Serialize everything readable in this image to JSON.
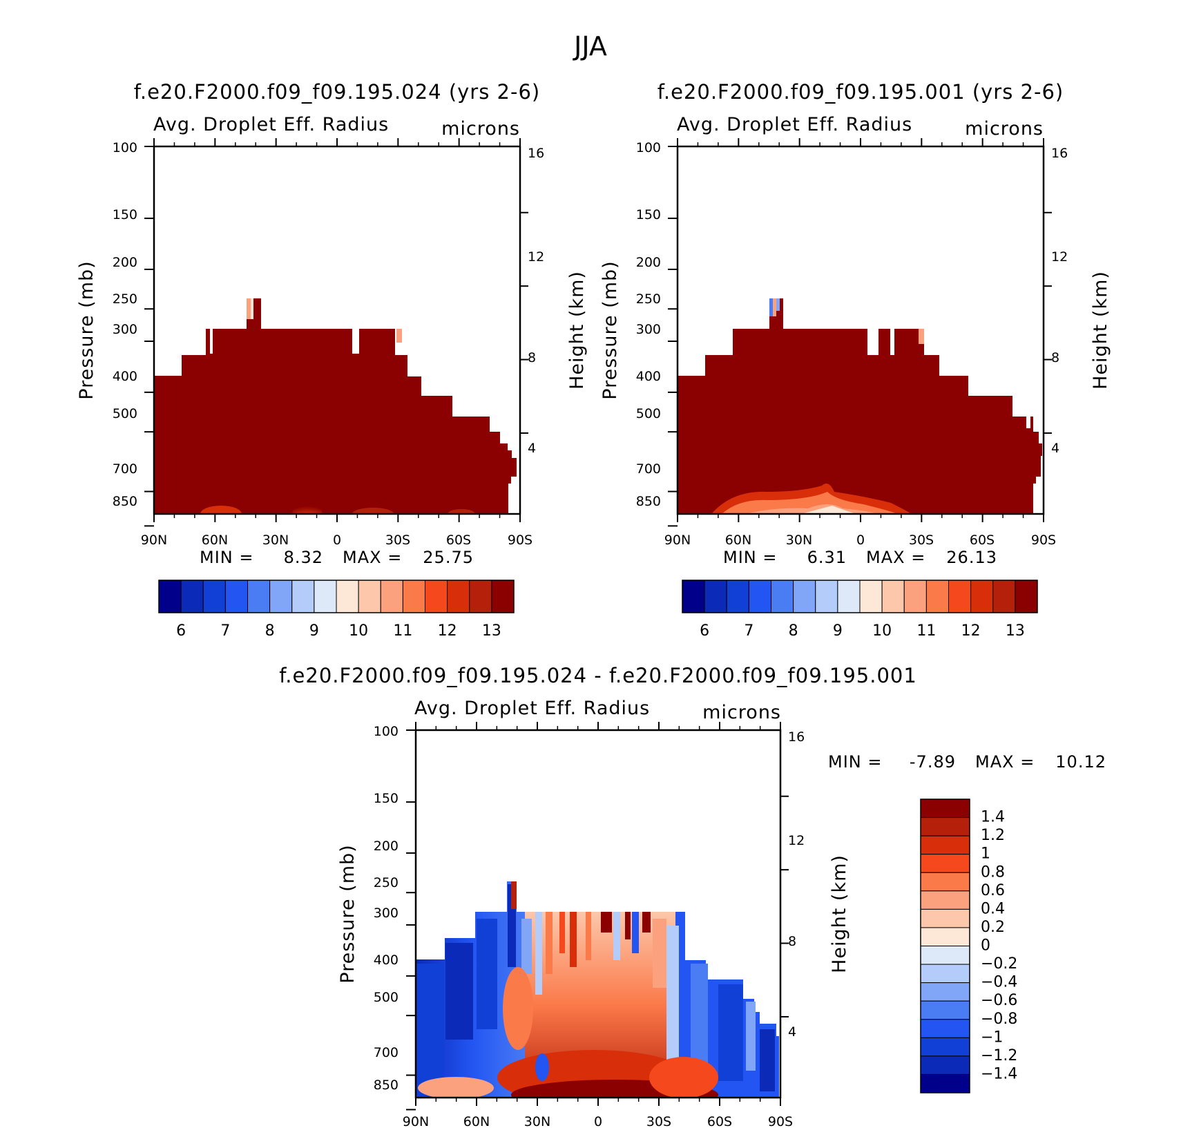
{
  "figure": {
    "title": "JJA"
  },
  "chart_data": [
    {
      "type": "heatmap",
      "title": "f.e20.F2000.f09_f09.195.024 (yrs 2-6)",
      "subtitle": "Avg. Droplet Eff. Radius",
      "units": "microns",
      "xlabel": "",
      "ylabel": "Pressure (mb)",
      "ylabel_right": "Height (km)",
      "x_ticks": [
        "90N",
        "60N",
        "30N",
        "0",
        "30S",
        "60S",
        "90S"
      ],
      "y_ticks": [
        "100",
        "150",
        "200",
        "250",
        "300",
        "400",
        "500",
        "700",
        "850"
      ],
      "y_right_ticks": [
        "16",
        "12",
        "8",
        "4"
      ],
      "ylim": [
        1000,
        100
      ],
      "ylog": true,
      "x_range": [
        "90N",
        "90S"
      ],
      "min_label": "MIN =",
      "min": "8.32",
      "max_label": "MAX =",
      "max": "25.75",
      "colorbar_levels": [
        6,
        6.5,
        7,
        7.5,
        8,
        8.5,
        9,
        9.5,
        10,
        10.5,
        11,
        11.5,
        12,
        12.5,
        13
      ],
      "colorbar_labels": [
        "6",
        "7",
        "8",
        "9",
        "10",
        "11",
        "12",
        "13"
      ],
      "dominant_value": ">13",
      "field_description": "Field almost entirely above 13 microns from the surface up to roughly 300-400 mb; slightly lower values (10-13) in a thin layer near the surface."
    },
    {
      "type": "heatmap",
      "title": "f.e20.F2000.f09_f09.195.001 (yrs 2-6)",
      "subtitle": "Avg. Droplet Eff. Radius",
      "units": "microns",
      "xlabel": "",
      "ylabel": "Pressure (mb)",
      "ylabel_right": "Height (km)",
      "x_ticks": [
        "90N",
        "60N",
        "30N",
        "0",
        "30S",
        "60S",
        "90S"
      ],
      "y_ticks": [
        "100",
        "150",
        "200",
        "250",
        "300",
        "400",
        "500",
        "700",
        "850"
      ],
      "y_right_ticks": [
        "16",
        "12",
        "8",
        "4"
      ],
      "ylim": [
        1000,
        100
      ],
      "ylog": true,
      "x_range": [
        "90N",
        "90S"
      ],
      "min_label": "MIN =",
      "min": "6.31",
      "max_label": "MAX =",
      "max": "26.13",
      "colorbar_levels": [
        6,
        6.5,
        7,
        7.5,
        8,
        8.5,
        9,
        9.5,
        10,
        10.5,
        11,
        11.5,
        12,
        12.5,
        13
      ],
      "colorbar_labels": [
        "6",
        "7",
        "8",
        "9",
        "10",
        "11",
        "12",
        "13"
      ],
      "dominant_value": ">13",
      "field_description": "Field almost entirely above 13 microns; lower values (9-13) near the surface around 60N-0."
    },
    {
      "type": "heatmap",
      "title": "f.e20.F2000.f09_f09.195.024 - f.e20.F2000.f09_f09.195.001",
      "subtitle": "Avg. Droplet Eff. Radius",
      "units": "microns",
      "xlabel": "",
      "ylabel": "Pressure (mb)",
      "ylabel_right": "Height (km)",
      "x_ticks": [
        "90N",
        "60N",
        "30N",
        "0",
        "30S",
        "60S",
        "90S"
      ],
      "y_ticks": [
        "100",
        "150",
        "200",
        "250",
        "300",
        "400",
        "500",
        "700",
        "850"
      ],
      "y_right_ticks": [
        "16",
        "12",
        "8",
        "4"
      ],
      "ylim": [
        1000,
        100
      ],
      "ylog": true,
      "x_range": [
        "90N",
        "90S"
      ],
      "min_label": "MIN =",
      "min": "-7.89",
      "max_label": "MAX =",
      "max": "10.12",
      "colorbar_levels": [
        -1.4,
        -1.2,
        -1,
        -0.8,
        -0.6,
        -0.4,
        -0.2,
        0,
        0.2,
        0.4,
        0.6,
        0.8,
        1,
        1.2,
        1.4
      ],
      "colorbar_labels": [
        "1.4",
        "1.2",
        "1",
        "0.8",
        "0.6",
        "0.4",
        "0.2",
        "0",
        "−0.2",
        "−0.4",
        "−0.6",
        "−0.8",
        "−1",
        "−1.2",
        "−1.4"
      ],
      "field_description": "Negative differences (blue) dominate 90N-35N and 45S-90S; positive differences (red) dominate roughly 30N-40S, strongest below 700 mb."
    }
  ],
  "colors": {
    "red_dominant": "#8b0000",
    "cmap": [
      "#00008b",
      "#0b2ab8",
      "#1140d6",
      "#2255f2",
      "#4a7cf4",
      "#82a6f7",
      "#b4ccf9",
      "#dde8f8",
      "#fde7d6",
      "#fcc7ab",
      "#fca17e",
      "#fb7a4a",
      "#f5481d",
      "#d92e0a",
      "#b5200a",
      "#8b0000"
    ]
  }
}
